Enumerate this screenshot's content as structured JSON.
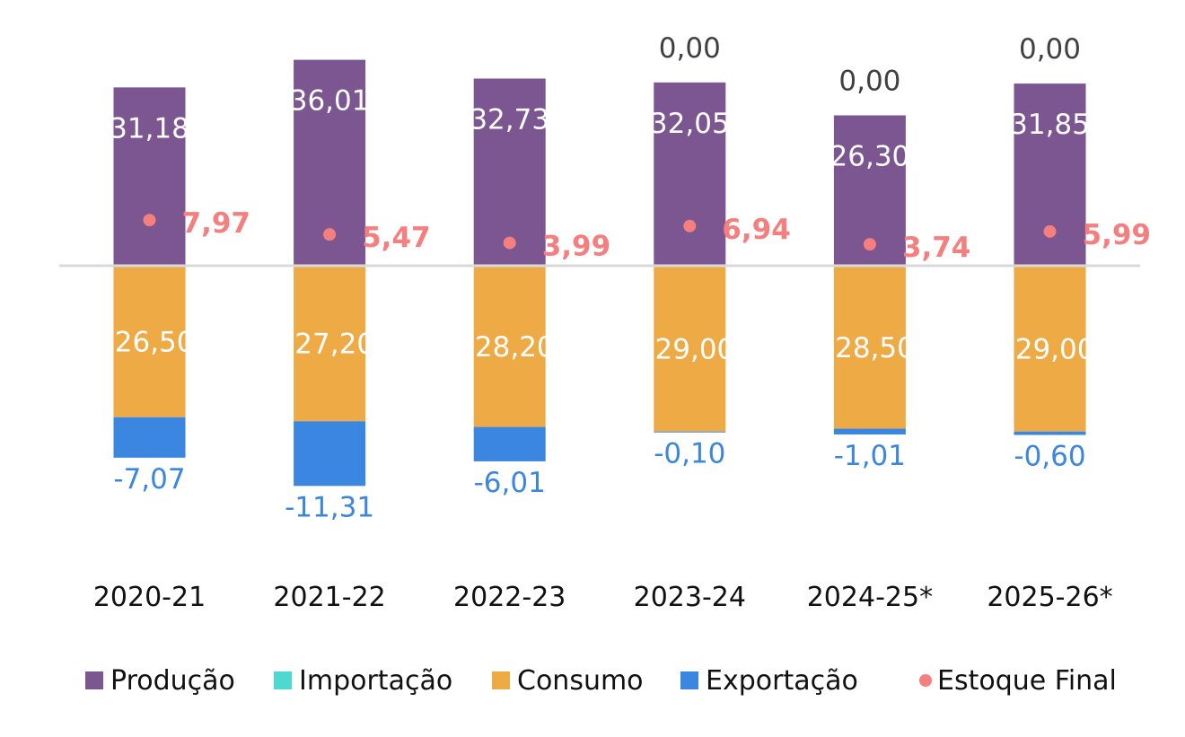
{
  "chart_data": {
    "type": "bar",
    "stacked": true,
    "categories": [
      "2020-21",
      "2021-22",
      "2022-23",
      "2023-24",
      "2024-25*",
      "2025-26*"
    ],
    "series": [
      {
        "name": "Produção",
        "color": "#7b5690",
        "values": [
          31.18,
          36.01,
          32.73,
          32.05,
          26.3,
          31.85
        ],
        "labels": [
          "31,18",
          "36,01",
          "32,73",
          "32,05",
          "26,30",
          "31,85"
        ]
      },
      {
        "name": "Importação",
        "color": "#4dd9cf",
        "values": [
          null,
          null,
          null,
          0.0,
          0.0,
          0.0
        ],
        "labels": [
          "",
          "",
          "",
          "0,00",
          "0,00",
          "0,00"
        ]
      },
      {
        "name": "Consumo",
        "color": "#eeaa45",
        "values": [
          -26.5,
          -27.2,
          -28.2,
          -29.0,
          -28.5,
          -29.0
        ],
        "labels": [
          "-26,50",
          "-27,20",
          "-28,20",
          "-29,00",
          "-28,50",
          "-29,00"
        ]
      },
      {
        "name": "Exportação",
        "color": "#3a86e0",
        "values": [
          -7.07,
          -11.31,
          -6.01,
          -0.1,
          -1.01,
          -0.6
        ],
        "labels": [
          "-7,07",
          "-11,31",
          "-6,01",
          "-0,10",
          "-1,01",
          "-0,60"
        ]
      },
      {
        "name": "Estoque Final",
        "color": "#f57e7e",
        "type": "scatter",
        "values": [
          7.97,
          5.47,
          3.99,
          6.94,
          3.74,
          5.99
        ],
        "labels": [
          "7,97",
          "5,47",
          "3,99",
          "6,94",
          "3,74",
          "5,99"
        ]
      }
    ],
    "legend": "bottom",
    "grid": false
  }
}
